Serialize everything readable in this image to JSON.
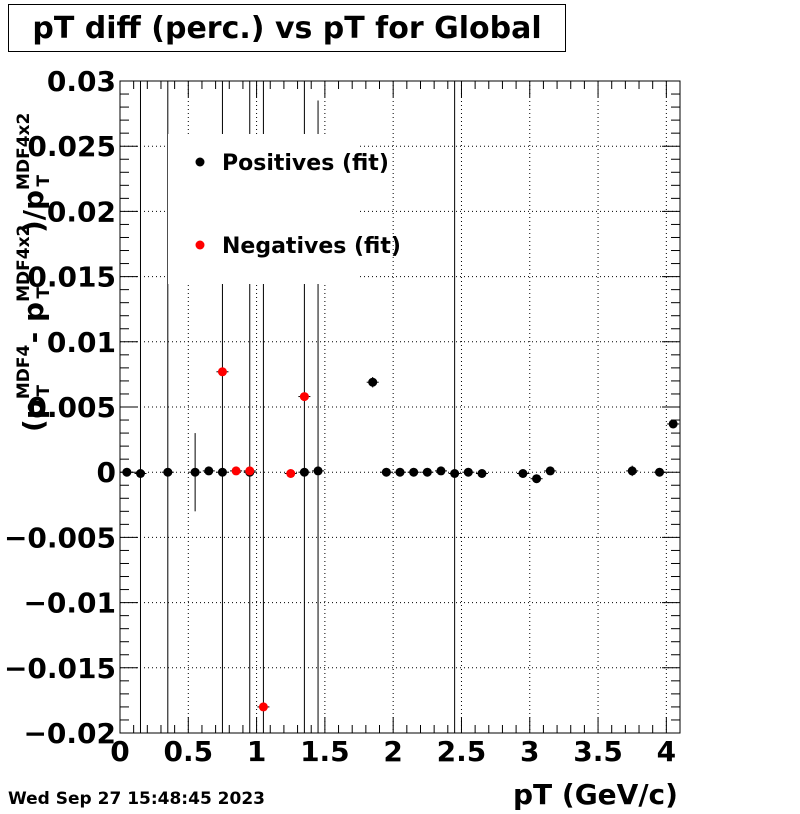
{
  "chart_data": {
    "type": "scatter",
    "title": "pT diff (perc.) vs pT for Global",
    "xlabel": "pT (GeV/c)",
    "ylabel": {
      "open": "(p",
      "t1_sup": "MDF4",
      "t1_sub": "T",
      "minus": " - p",
      "t2_sup": "MDF4x2",
      "t2_sub": "T",
      "divide": ")/p",
      "t3_sup": "MDF4x2",
      "t3_sub": "T"
    },
    "xlim": [
      0,
      4.1
    ],
    "ylim": [
      -0.02,
      0.03
    ],
    "xticks": [
      {
        "v": 0,
        "label": "0"
      },
      {
        "v": 0.5,
        "label": "0.5"
      },
      {
        "v": 1,
        "label": "1"
      },
      {
        "v": 1.5,
        "label": "1.5"
      },
      {
        "v": 2,
        "label": "2"
      },
      {
        "v": 2.5,
        "label": "2.5"
      },
      {
        "v": 3,
        "label": "3"
      },
      {
        "v": 3.5,
        "label": "3.5"
      },
      {
        "v": 4,
        "label": "4"
      }
    ],
    "yticks": [
      {
        "v": -0.02,
        "label": "−0.02"
      },
      {
        "v": -0.015,
        "label": "−0.015"
      },
      {
        "v": -0.01,
        "label": "−0.01"
      },
      {
        "v": -0.005,
        "label": "−0.005"
      },
      {
        "v": 0,
        "label": "0"
      },
      {
        "v": 0.005,
        "label": "0.005"
      },
      {
        "v": 0.01,
        "label": "0.01"
      },
      {
        "v": 0.015,
        "label": "0.015"
      },
      {
        "v": 0.02,
        "label": "0.02"
      },
      {
        "v": 0.025,
        "label": "0.025"
      },
      {
        "v": 0.03,
        "label": "0.03"
      }
    ],
    "grid": true,
    "legend_position": "top-left",
    "series": [
      {
        "name": "Positives (fit)",
        "color": "#000000",
        "points": [
          {
            "x": 0.05,
            "y": 0.0,
            "ylo": 0.0,
            "yhi": 0.0
          },
          {
            "x": 0.15,
            "y": -0.0001,
            "ylo": -0.02,
            "yhi": 0.03
          },
          {
            "x": 0.35,
            "y": 0.0,
            "ylo": -0.02,
            "yhi": 0.03
          },
          {
            "x": 0.55,
            "y": 0.0,
            "ylo": -0.003,
            "yhi": 0.003
          },
          {
            "x": 0.65,
            "y": 0.0001,
            "ylo": 0.0,
            "yhi": 0.0
          },
          {
            "x": 0.75,
            "y": 0.0,
            "ylo": -0.02,
            "yhi": 0.03
          },
          {
            "x": 0.95,
            "y": 0.0,
            "ylo": -0.02,
            "yhi": 0.03
          },
          {
            "x": 1.35,
            "y": 0.0,
            "ylo": -0.02,
            "yhi": 0.03
          },
          {
            "x": 1.45,
            "y": 0.0001,
            "ylo": -0.02,
            "yhi": 0.0285
          },
          {
            "x": 1.85,
            "y": 0.0069,
            "ylo": 0.0065,
            "yhi": 0.0073
          },
          {
            "x": 1.95,
            "y": 0.0,
            "ylo": 0.0,
            "yhi": 0.0
          },
          {
            "x": 2.05,
            "y": 0.0,
            "ylo": 0.0,
            "yhi": 0.0
          },
          {
            "x": 2.15,
            "y": 0.0,
            "ylo": 0.0,
            "yhi": 0.0
          },
          {
            "x": 2.25,
            "y": 0.0,
            "ylo": 0.0,
            "yhi": 0.0
          },
          {
            "x": 2.35,
            "y": 0.0001,
            "ylo": 0.0,
            "yhi": 0.0
          },
          {
            "x": 2.45,
            "y": -0.0001,
            "ylo": -0.02,
            "yhi": 0.03
          },
          {
            "x": 2.55,
            "y": 0.0,
            "ylo": 0.0,
            "yhi": 0.0
          },
          {
            "x": 2.65,
            "y": -0.0001,
            "ylo": 0.0,
            "yhi": 0.0
          },
          {
            "x": 2.95,
            "y": -0.0001,
            "ylo": 0.0,
            "yhi": 0.0
          },
          {
            "x": 3.05,
            "y": -0.0005,
            "ylo": -0.0008,
            "yhi": -0.0002
          },
          {
            "x": 3.15,
            "y": 0.0001,
            "ylo": 0.0,
            "yhi": 0.0
          },
          {
            "x": 3.75,
            "y": 0.0001,
            "ylo": -0.0003,
            "yhi": 0.0005
          },
          {
            "x": 3.95,
            "y": 0.0,
            "ylo": 0.0,
            "yhi": 0.0
          },
          {
            "x": 4.05,
            "y": 0.0037,
            "ylo": 0.0,
            "yhi": 0.0
          }
        ]
      },
      {
        "name": "Negatives (fit)",
        "color": "#ff0000",
        "points": [
          {
            "x": 0.75,
            "y": 0.0077,
            "ylo": 0.0,
            "yhi": 0.0
          },
          {
            "x": 0.85,
            "y": 0.0001,
            "ylo": 0.0,
            "yhi": 0.0
          },
          {
            "x": 0.95,
            "y": 0.0001,
            "ylo": 0.0,
            "yhi": 0.0
          },
          {
            "x": 1.05,
            "y": -0.018,
            "ylo": -0.02,
            "yhi": 0.03
          },
          {
            "x": 1.25,
            "y": -0.0001,
            "ylo": 0.0,
            "yhi": 0.0
          },
          {
            "x": 1.35,
            "y": 0.0058,
            "ylo": 0.0,
            "yhi": 0.0
          }
        ]
      }
    ]
  },
  "footer": {
    "date": "Wed Sep 27 15:48:45 2023"
  }
}
